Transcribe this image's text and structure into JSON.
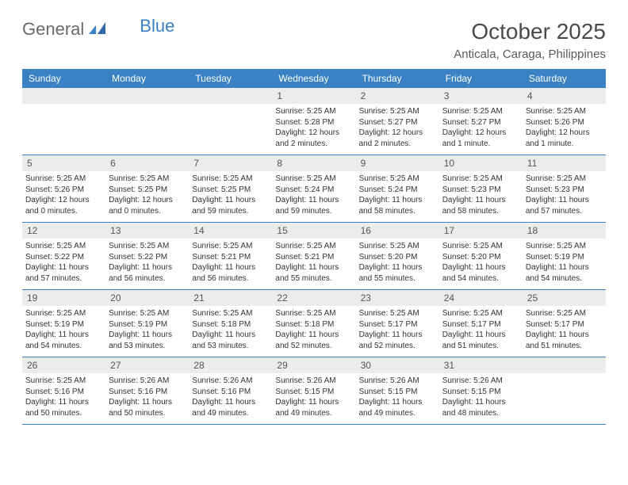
{
  "logo": {
    "text1": "General",
    "text2": "Blue"
  },
  "title": "October 2025",
  "location": "Anticala, Caraga, Philippines",
  "colors": {
    "header_bg": "#3b82c4",
    "header_text": "#ffffff",
    "daynum_bg": "#ececec",
    "border": "#3b82c4",
    "logo_gray": "#6a6a6a",
    "logo_blue": "#3b7fc4"
  },
  "weekdays": [
    "Sunday",
    "Monday",
    "Tuesday",
    "Wednesday",
    "Thursday",
    "Friday",
    "Saturday"
  ],
  "weeks": [
    [
      {
        "day": "",
        "lines": []
      },
      {
        "day": "",
        "lines": []
      },
      {
        "day": "",
        "lines": []
      },
      {
        "day": "1",
        "lines": [
          "Sunrise: 5:25 AM",
          "Sunset: 5:28 PM",
          "Daylight: 12 hours",
          "and 2 minutes."
        ]
      },
      {
        "day": "2",
        "lines": [
          "Sunrise: 5:25 AM",
          "Sunset: 5:27 PM",
          "Daylight: 12 hours",
          "and 2 minutes."
        ]
      },
      {
        "day": "3",
        "lines": [
          "Sunrise: 5:25 AM",
          "Sunset: 5:27 PM",
          "Daylight: 12 hours",
          "and 1 minute."
        ]
      },
      {
        "day": "4",
        "lines": [
          "Sunrise: 5:25 AM",
          "Sunset: 5:26 PM",
          "Daylight: 12 hours",
          "and 1 minute."
        ]
      }
    ],
    [
      {
        "day": "5",
        "lines": [
          "Sunrise: 5:25 AM",
          "Sunset: 5:26 PM",
          "Daylight: 12 hours",
          "and 0 minutes."
        ]
      },
      {
        "day": "6",
        "lines": [
          "Sunrise: 5:25 AM",
          "Sunset: 5:25 PM",
          "Daylight: 12 hours",
          "and 0 minutes."
        ]
      },
      {
        "day": "7",
        "lines": [
          "Sunrise: 5:25 AM",
          "Sunset: 5:25 PM",
          "Daylight: 11 hours",
          "and 59 minutes."
        ]
      },
      {
        "day": "8",
        "lines": [
          "Sunrise: 5:25 AM",
          "Sunset: 5:24 PM",
          "Daylight: 11 hours",
          "and 59 minutes."
        ]
      },
      {
        "day": "9",
        "lines": [
          "Sunrise: 5:25 AM",
          "Sunset: 5:24 PM",
          "Daylight: 11 hours",
          "and 58 minutes."
        ]
      },
      {
        "day": "10",
        "lines": [
          "Sunrise: 5:25 AM",
          "Sunset: 5:23 PM",
          "Daylight: 11 hours",
          "and 58 minutes."
        ]
      },
      {
        "day": "11",
        "lines": [
          "Sunrise: 5:25 AM",
          "Sunset: 5:23 PM",
          "Daylight: 11 hours",
          "and 57 minutes."
        ]
      }
    ],
    [
      {
        "day": "12",
        "lines": [
          "Sunrise: 5:25 AM",
          "Sunset: 5:22 PM",
          "Daylight: 11 hours",
          "and 57 minutes."
        ]
      },
      {
        "day": "13",
        "lines": [
          "Sunrise: 5:25 AM",
          "Sunset: 5:22 PM",
          "Daylight: 11 hours",
          "and 56 minutes."
        ]
      },
      {
        "day": "14",
        "lines": [
          "Sunrise: 5:25 AM",
          "Sunset: 5:21 PM",
          "Daylight: 11 hours",
          "and 56 minutes."
        ]
      },
      {
        "day": "15",
        "lines": [
          "Sunrise: 5:25 AM",
          "Sunset: 5:21 PM",
          "Daylight: 11 hours",
          "and 55 minutes."
        ]
      },
      {
        "day": "16",
        "lines": [
          "Sunrise: 5:25 AM",
          "Sunset: 5:20 PM",
          "Daylight: 11 hours",
          "and 55 minutes."
        ]
      },
      {
        "day": "17",
        "lines": [
          "Sunrise: 5:25 AM",
          "Sunset: 5:20 PM",
          "Daylight: 11 hours",
          "and 54 minutes."
        ]
      },
      {
        "day": "18",
        "lines": [
          "Sunrise: 5:25 AM",
          "Sunset: 5:19 PM",
          "Daylight: 11 hours",
          "and 54 minutes."
        ]
      }
    ],
    [
      {
        "day": "19",
        "lines": [
          "Sunrise: 5:25 AM",
          "Sunset: 5:19 PM",
          "Daylight: 11 hours",
          "and 54 minutes."
        ]
      },
      {
        "day": "20",
        "lines": [
          "Sunrise: 5:25 AM",
          "Sunset: 5:19 PM",
          "Daylight: 11 hours",
          "and 53 minutes."
        ]
      },
      {
        "day": "21",
        "lines": [
          "Sunrise: 5:25 AM",
          "Sunset: 5:18 PM",
          "Daylight: 11 hours",
          "and 53 minutes."
        ]
      },
      {
        "day": "22",
        "lines": [
          "Sunrise: 5:25 AM",
          "Sunset: 5:18 PM",
          "Daylight: 11 hours",
          "and 52 minutes."
        ]
      },
      {
        "day": "23",
        "lines": [
          "Sunrise: 5:25 AM",
          "Sunset: 5:17 PM",
          "Daylight: 11 hours",
          "and 52 minutes."
        ]
      },
      {
        "day": "24",
        "lines": [
          "Sunrise: 5:25 AM",
          "Sunset: 5:17 PM",
          "Daylight: 11 hours",
          "and 51 minutes."
        ]
      },
      {
        "day": "25",
        "lines": [
          "Sunrise: 5:25 AM",
          "Sunset: 5:17 PM",
          "Daylight: 11 hours",
          "and 51 minutes."
        ]
      }
    ],
    [
      {
        "day": "26",
        "lines": [
          "Sunrise: 5:25 AM",
          "Sunset: 5:16 PM",
          "Daylight: 11 hours",
          "and 50 minutes."
        ]
      },
      {
        "day": "27",
        "lines": [
          "Sunrise: 5:26 AM",
          "Sunset: 5:16 PM",
          "Daylight: 11 hours",
          "and 50 minutes."
        ]
      },
      {
        "day": "28",
        "lines": [
          "Sunrise: 5:26 AM",
          "Sunset: 5:16 PM",
          "Daylight: 11 hours",
          "and 49 minutes."
        ]
      },
      {
        "day": "29",
        "lines": [
          "Sunrise: 5:26 AM",
          "Sunset: 5:15 PM",
          "Daylight: 11 hours",
          "and 49 minutes."
        ]
      },
      {
        "day": "30",
        "lines": [
          "Sunrise: 5:26 AM",
          "Sunset: 5:15 PM",
          "Daylight: 11 hours",
          "and 49 minutes."
        ]
      },
      {
        "day": "31",
        "lines": [
          "Sunrise: 5:26 AM",
          "Sunset: 5:15 PM",
          "Daylight: 11 hours",
          "and 48 minutes."
        ]
      },
      {
        "day": "",
        "lines": []
      }
    ]
  ]
}
